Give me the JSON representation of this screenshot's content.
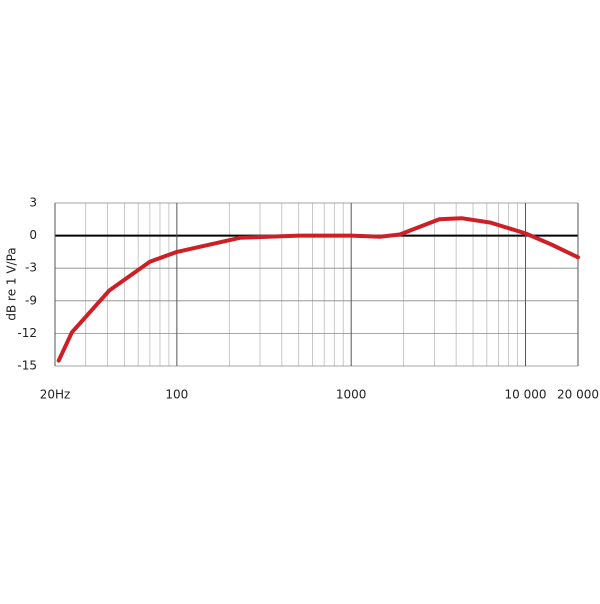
{
  "chart_data": {
    "type": "line",
    "y_label": "dB re 1 V/Pa",
    "x_scale": "log",
    "xlim": [
      20,
      20000
    ],
    "xticks": [
      {
        "value": 20,
        "label": "20Hz"
      },
      100,
      1000,
      {
        "value": 10000,
        "label": "10 000"
      },
      {
        "value": 20000,
        "label": "20 000"
      }
    ],
    "minor_xticks": [
      30,
      40,
      50,
      60,
      70,
      80,
      90,
      200,
      300,
      400,
      500,
      600,
      700,
      800,
      900,
      2000,
      3000,
      4000,
      5000,
      6000,
      7000,
      8000,
      9000
    ],
    "ylim": [
      -15,
      3
    ],
    "yticks": [
      3,
      0,
      -3,
      -9,
      -12,
      -15
    ],
    "grid": true,
    "series": [
      {
        "color": "#cc1f26",
        "x": [
          21,
          25,
          41,
          70,
          100,
          230,
          500,
          1000,
          1470,
          1900,
          3200,
          4300,
          6300,
          10000,
          14000,
          20000
        ],
        "values": [
          -14.5,
          -11.9,
          -7.1,
          -2.4,
          -1.5,
          -0.2,
          0,
          0,
          -0.1,
          0.1,
          1.5,
          1.6,
          1.2,
          0.2,
          -0.8,
          -2
        ]
      }
    ]
  }
}
